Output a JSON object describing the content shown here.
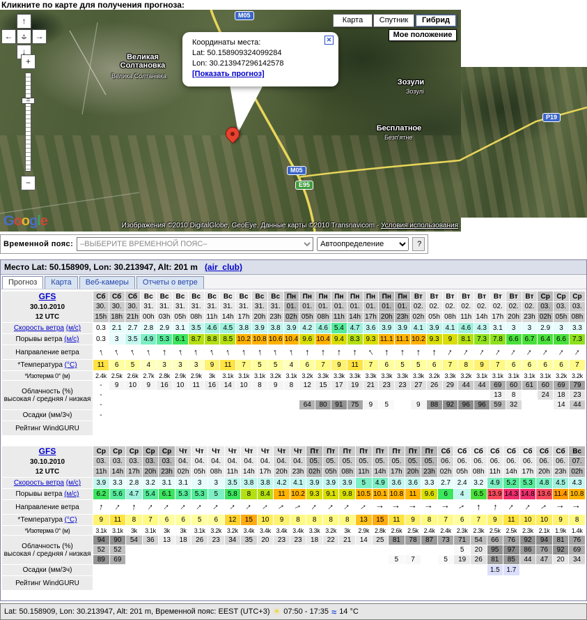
{
  "page": {
    "instruction": "Кликните по карте для получения прогноза:"
  },
  "map": {
    "type_buttons": {
      "map": "Карта",
      "satellite": "Спутник",
      "hybrid": "Гибрид"
    },
    "my_location_button": "Мое положение",
    "controls": {
      "up": "↑",
      "down": "↓",
      "left": "←",
      "right": "→",
      "pan_h": "↔",
      "pan_v": "↕",
      "zoom_in": "+",
      "zoom_out": "−",
      "handle": "="
    },
    "balloon": {
      "title": "Координаты места:",
      "lat_line": "Lat: 50.158909324099284",
      "lon_line": "Lon: 30.213947296142578",
      "link": "[Показать прогноз]",
      "close_icon": "✕"
    },
    "labels": {
      "town1_line1": "Великая",
      "town1_line2": "Солтановка",
      "town1_sub": "Велика Солтанівка",
      "town2": "Зозули",
      "town2_sub": "Зозулі",
      "town3": "Бесплатное",
      "town3_sub": "Безп'ятне"
    },
    "roads": {
      "m05_top": "М05",
      "m05_mid": "М05",
      "e95": "Е95",
      "p19": "Р19"
    },
    "logo_letters": [
      "G",
      "o",
      "o",
      "g",
      "l",
      "e"
    ],
    "logo_colors": [
      "#4b6fd6",
      "#d84437",
      "#f2bb2e",
      "#4b6fd6",
      "#3aa75a",
      "#d84437"
    ],
    "attribution": "Изображения ©2010 DigitalGlobe, GeoEye, Данные карты ©2010 Transnavicom - ",
    "terms_link": "Условия использования"
  },
  "timezone_bar": {
    "label": "Временной пояс:",
    "select_value": "–ВЫБЕРИТЕ ВРЕМЕННОЙ ПОЯС–",
    "auto_value": "Автоопределение",
    "help_label": "?"
  },
  "forecast": {
    "title": "Место Lat: 50.158909, Lon: 30.213947, Alt: 201 m",
    "title_link": "(air_club)",
    "tabs": [
      "Прогноз",
      "Карта",
      "Веб-камеры",
      "Отчеты о ветре"
    ],
    "rows": [
      {
        "key": "wind_speed",
        "type": "wind",
        "label_parts": [
          {
            "t": "Скорость ветра",
            "link": true
          },
          {
            "t": " "
          },
          {
            "t": "(м/с)",
            "link": true
          }
        ]
      },
      {
        "key": "gusts",
        "type": "wind",
        "label_parts": [
          {
            "t": "Порывы ветра"
          },
          {
            "t": " "
          },
          {
            "t": "(м/с)",
            "link": true
          }
        ]
      },
      {
        "key": "dir_deg",
        "type": "dir",
        "label_parts": [
          {
            "t": "Направление ветра"
          }
        ]
      },
      {
        "key": "temp",
        "type": "temp",
        "label_parts": [
          {
            "t": "*Температура "
          },
          {
            "t": "(°C)",
            "link": true
          }
        ]
      },
      {
        "key": "isotherm",
        "type": "plain",
        "label_parts": [
          {
            "t": "*Изотерма 0° (м)"
          }
        ]
      },
      {
        "key": "cloud",
        "type": "cloud3",
        "label_parts": [
          {
            "t": "Облачность (%)"
          },
          {
            "br": true
          },
          {
            "t": "высокая / средняя / низкая"
          }
        ]
      },
      {
        "key": "precip",
        "type": "precip",
        "label_parts": [
          {
            "t": "Осадки (мм/3ч)"
          }
        ]
      },
      {
        "key": "rating",
        "type": "empty",
        "label_parts": [
          {
            "t": "Рейтинг WindGURU"
          }
        ]
      }
    ],
    "tables": [
      {
        "model": "GFS",
        "run_date": "30.10.2010",
        "run_time": "12 UTC",
        "days": [
          {
            "name": "Сб",
            "date": "30.",
            "hours": [
              "15h",
              "18h",
              "21h"
            ]
          },
          {
            "name": "Вс",
            "date": "31.",
            "hours": [
              "00h",
              "03h",
              "05h",
              "08h",
              "11h",
              "14h",
              "17h",
              "20h",
              "23h"
            ]
          },
          {
            "name": "Пн",
            "date": "01.",
            "hours": [
              "02h",
              "05h",
              "08h",
              "11h",
              "14h",
              "17h",
              "20h",
              "23h"
            ]
          },
          {
            "name": "Вт",
            "date": "02.",
            "hours": [
              "02h",
              "05h",
              "08h",
              "11h",
              "14h",
              "17h",
              "20h",
              "23h"
            ]
          },
          {
            "name": "Ср",
            "date": "03.",
            "hours": [
              "02h",
              "05h",
              "08h"
            ]
          }
        ],
        "wind_speed": [
          "0.3",
          "2.1",
          "2.7",
          "2.8",
          "2.9",
          "3.1",
          "3.5",
          "4.6",
          "4.5",
          "3.8",
          "3.9",
          "3.8",
          "3.9",
          "4.2",
          "4.6",
          "5.4",
          "4.7",
          "3.6",
          "3.9",
          "3.9",
          "4.1",
          "3.9",
          "4.1",
          "4.6",
          "4.3",
          "3.1",
          "3",
          "3",
          "2.9",
          "3",
          "3.3"
        ],
        "gusts": [
          "0.3",
          "3",
          "3.5",
          "4.9",
          "5.3",
          "6.1",
          "8.7",
          "8.8",
          "8.5",
          "10.2",
          "10.8",
          "10.6",
          "10.4",
          "9.6",
          "10.4",
          "9.4",
          "8.3",
          "9.3",
          "11.1",
          "11.1",
          "10.2",
          "9.3",
          "9",
          "8.1",
          "7.3",
          "7.8",
          "6.6",
          "6.7",
          "6.4",
          "6.6",
          "7.3"
        ],
        "dir_deg": [
          -15,
          -18,
          -18,
          -15,
          -5,
          -12,
          -12,
          -18,
          -15,
          -12,
          -10,
          -12,
          -12,
          0,
          0,
          0,
          0,
          -35,
          0,
          0,
          0,
          0,
          28,
          30,
          30,
          32,
          32,
          35,
          35,
          35,
          35
        ],
        "temp": [
          "11",
          "6",
          "5",
          "4",
          "3",
          "3",
          "3",
          "9",
          "11",
          "7",
          "5",
          "5",
          "4",
          "6",
          "7",
          "9",
          "11",
          "7",
          "6",
          "5",
          "5",
          "6",
          "7",
          "8",
          "9",
          "7",
          "6",
          "6",
          "6",
          "6",
          "7"
        ],
        "isotherm": [
          "2.4k",
          "2.5k",
          "2.6k",
          "2.7k",
          "2.8k",
          "2.9k",
          "2.9k",
          "3k",
          "3.1k",
          "3.1k",
          "3.1k",
          "3.2k",
          "3.1k",
          "3.2k",
          "3.3k",
          "3.3k",
          "3.3k",
          "3.3k",
          "3.3k",
          "3.3k",
          "3.3k",
          "3.2k",
          "3.3k",
          "3.2k",
          "3.1k",
          "3.1k",
          "3.1k",
          "3.1k",
          "3.1k",
          "3.2k",
          "3.2k"
        ],
        "cloud_high": [
          "-",
          "9",
          "10",
          "9",
          "16",
          "10",
          "11",
          "16",
          "14",
          "10",
          "8",
          "9",
          "8",
          "12",
          "15",
          "17",
          "19",
          "21",
          "23",
          "23",
          "27",
          "26",
          "29",
          "44",
          "44",
          "69",
          "60",
          "61",
          "60",
          "69",
          "79"
        ],
        "cloud_mid": [
          "-",
          "",
          "",
          "",
          "",
          "",
          "",
          "",
          "",
          "",
          "",
          "",
          "",
          "",
          "",
          "",
          "",
          "",
          "",
          "",
          "",
          "",
          "",
          "",
          "",
          "13",
          "8",
          "",
          "24",
          "18",
          "23"
        ],
        "cloud_low": [
          "-",
          "",
          "",
          "",
          "",
          "",
          "",
          "",
          "",
          "",
          "",
          "",
          "",
          "64",
          "80",
          "91",
          "75",
          "9",
          "5",
          "",
          "9",
          "88",
          "92",
          "96",
          "96",
          "59",
          "32",
          "",
          "",
          "14",
          "44"
        ],
        "precip": [
          "-",
          "",
          "",
          "",
          "",
          "",
          "",
          "",
          "",
          "",
          "",
          "",
          "",
          "",
          "",
          "",
          "",
          "",
          "",
          "",
          "",
          "",
          "",
          "",
          "",
          "",
          "",
          "",
          "",
          "",
          ""
        ],
        "rating": [
          "",
          "",
          "",
          "",
          "",
          "",
          "",
          "",
          "",
          "",
          "",
          "",
          "",
          "",
          "",
          "",
          "",
          "",
          "",
          "",
          "",
          "",
          "",
          "",
          "",
          "",
          "",
          "",
          "",
          "",
          ""
        ]
      },
      {
        "model": "GFS",
        "run_date": "30.10.2010",
        "run_time": "12 UTC",
        "days": [
          {
            "name": "Ср",
            "date": "03.",
            "hours": [
              "11h",
              "14h",
              "17h",
              "20h",
              "23h"
            ]
          },
          {
            "name": "Чт",
            "date": "04.",
            "hours": [
              "02h",
              "05h",
              "08h",
              "11h",
              "14h",
              "17h",
              "20h",
              "23h"
            ]
          },
          {
            "name": "Пт",
            "date": "05.",
            "hours": [
              "02h",
              "05h",
              "08h",
              "11h",
              "14h",
              "17h",
              "20h",
              "23h"
            ]
          },
          {
            "name": "Сб",
            "date": "06.",
            "hours": [
              "02h",
              "05h",
              "08h",
              "11h",
              "14h",
              "17h",
              "20h",
              "23h"
            ]
          },
          {
            "name": "Вс",
            "date": "07.",
            "hours": [
              "02h"
            ]
          }
        ],
        "wind_speed": [
          "3.9",
          "3.3",
          "2.8",
          "3.2",
          "3.1",
          "3.1",
          "3",
          "3",
          "3.5",
          "3.8",
          "3.8",
          "4.2",
          "4.1",
          "3.9",
          "3.9",
          "3.9",
          "5",
          "4.9",
          "3.6",
          "3.6",
          "3.3",
          "2.7",
          "2.4",
          "3.2",
          "4.9",
          "5.2",
          "5.3",
          "4.8",
          "4.5",
          "4.3"
        ],
        "gusts": [
          "6.2",
          "5.6",
          "4.7",
          "5.4",
          "6.1",
          "5.3",
          "5.3",
          "5",
          "5.8",
          "8",
          "8.4",
          "11",
          "10.2",
          "9.3",
          "9.1",
          "9.8",
          "10.5",
          "10.1",
          "10.8",
          "11",
          "9.6",
          "6",
          "4",
          "6.5",
          "13.9",
          "14.3",
          "14.8",
          "13.6",
          "11.4",
          "10.8"
        ],
        "dir_deg": [
          8,
          38,
          5,
          40,
          45,
          45,
          45,
          45,
          45,
          45,
          50,
          55,
          65,
          40,
          45,
          45,
          50,
          90,
          90,
          90,
          90,
          90,
          60,
          0,
          5,
          40,
          40,
          55,
          85,
          90
        ],
        "temp": [
          "9",
          "11",
          "8",
          "7",
          "6",
          "6",
          "5",
          "6",
          "12",
          "15",
          "10",
          "9",
          "8",
          "8",
          "8",
          "8",
          "13",
          "15",
          "11",
          "9",
          "8",
          "7",
          "6",
          "7",
          "9",
          "11",
          "10",
          "10",
          "9",
          "8"
        ],
        "isotherm": [
          "3.1k",
          "3.1k",
          "3k",
          "3.1k",
          "3k",
          "3k",
          "3.1k",
          "3.2k",
          "3.2k",
          "3.4k",
          "3.4k",
          "3.4k",
          "3.4k",
          "3.3k",
          "3.2k",
          "3k",
          "2.9k",
          "2.8k",
          "2.6k",
          "2.5k",
          "2.4k",
          "2.4k",
          "2.3k",
          "2.3k",
          "2.5k",
          "2.5k",
          "2.3k",
          "2.1k",
          "1.9k",
          "1.4k"
        ],
        "cloud_high": [
          "94",
          "90",
          "54",
          "36",
          "13",
          "18",
          "26",
          "23",
          "34",
          "35",
          "20",
          "23",
          "23",
          "18",
          "22",
          "21",
          "14",
          "25",
          "81",
          "78",
          "87",
          "73",
          "71",
          "54",
          "66",
          "76",
          "92",
          "94",
          "81",
          "76"
        ],
        "cloud_mid": [
          "52",
          "52",
          "",
          "",
          "",
          "",
          "",
          "",
          "",
          "",
          "",
          "",
          "",
          "",
          "",
          "",
          "",
          "",
          "",
          "",
          "",
          "",
          "5",
          "20",
          "95",
          "97",
          "86",
          "76",
          "92",
          "69"
        ],
        "cloud_low": [
          "89",
          "69",
          "",
          "",
          "",
          "",
          "",
          "",
          "",
          "",
          "",
          "",
          "",
          "",
          "",
          "",
          "",
          "",
          "5",
          "7",
          "",
          "5",
          "19",
          "26",
          "81",
          "85",
          "44",
          "47",
          "20",
          "34"
        ],
        "precip": [
          "",
          "",
          "",
          "",
          "",
          "",
          "",
          "",
          "",
          "",
          "",
          "",
          "",
          "",
          "",
          "",
          "",
          "",
          "",
          "",
          "",
          "",
          "",
          "",
          "1.5",
          "1.7",
          "",
          "",
          "",
          ""
        ],
        "rating": [
          "",
          "",
          "",
          "",
          "",
          "",
          "",
          "",
          "",
          "",
          "",
          "",
          "",
          "",
          "",
          "",
          "",
          "",
          "",
          "",
          "",
          "",
          "",
          "",
          "",
          "",
          "",
          "",
          "",
          ""
        ]
      }
    ],
    "status_bar": {
      "text": "Lat: 50.158909, Lon: 30.213947, Alt: 201 m, Временной пояс: EEST (UTC+3)",
      "sun_icon": "☀",
      "daylight": "07:50 - 17:35",
      "wave_icon": "≈",
      "temp": "14 °C"
    }
  }
}
